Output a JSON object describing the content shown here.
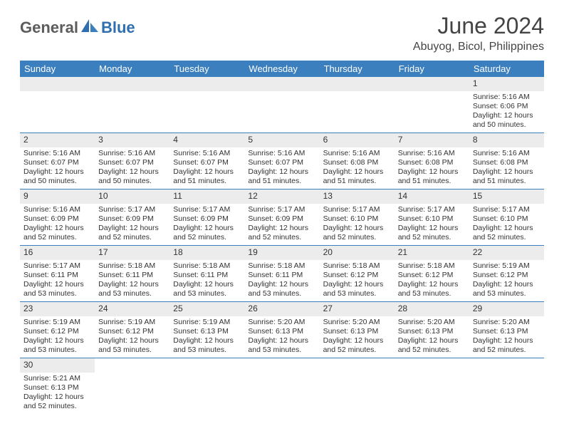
{
  "brand": {
    "part1": "General",
    "part2": "Blue"
  },
  "logo_colors": {
    "gray": "#5c5c5c",
    "blue": "#2f6fb0",
    "shape": "#3b7fbf"
  },
  "title": "June 2024",
  "location": "Abuyog, Bicol, Philippines",
  "header_bg": "#3b7fbf",
  "header_fg": "#ffffff",
  "daynum_bg": "#ececec",
  "rule_color": "#3b7fbf",
  "weekdays": [
    "Sunday",
    "Monday",
    "Tuesday",
    "Wednesday",
    "Thursday",
    "Friday",
    "Saturday"
  ],
  "weeks": [
    [
      {
        "n": "",
        "sr": "",
        "ss": "",
        "dl": ""
      },
      {
        "n": "",
        "sr": "",
        "ss": "",
        "dl": ""
      },
      {
        "n": "",
        "sr": "",
        "ss": "",
        "dl": ""
      },
      {
        "n": "",
        "sr": "",
        "ss": "",
        "dl": ""
      },
      {
        "n": "",
        "sr": "",
        "ss": "",
        "dl": ""
      },
      {
        "n": "",
        "sr": "",
        "ss": "",
        "dl": ""
      },
      {
        "n": "1",
        "sr": "Sunrise: 5:16 AM",
        "ss": "Sunset: 6:06 PM",
        "dl": "Daylight: 12 hours and 50 minutes."
      }
    ],
    [
      {
        "n": "2",
        "sr": "Sunrise: 5:16 AM",
        "ss": "Sunset: 6:07 PM",
        "dl": "Daylight: 12 hours and 50 minutes."
      },
      {
        "n": "3",
        "sr": "Sunrise: 5:16 AM",
        "ss": "Sunset: 6:07 PM",
        "dl": "Daylight: 12 hours and 50 minutes."
      },
      {
        "n": "4",
        "sr": "Sunrise: 5:16 AM",
        "ss": "Sunset: 6:07 PM",
        "dl": "Daylight: 12 hours and 51 minutes."
      },
      {
        "n": "5",
        "sr": "Sunrise: 5:16 AM",
        "ss": "Sunset: 6:07 PM",
        "dl": "Daylight: 12 hours and 51 minutes."
      },
      {
        "n": "6",
        "sr": "Sunrise: 5:16 AM",
        "ss": "Sunset: 6:08 PM",
        "dl": "Daylight: 12 hours and 51 minutes."
      },
      {
        "n": "7",
        "sr": "Sunrise: 5:16 AM",
        "ss": "Sunset: 6:08 PM",
        "dl": "Daylight: 12 hours and 51 minutes."
      },
      {
        "n": "8",
        "sr": "Sunrise: 5:16 AM",
        "ss": "Sunset: 6:08 PM",
        "dl": "Daylight: 12 hours and 51 minutes."
      }
    ],
    [
      {
        "n": "9",
        "sr": "Sunrise: 5:16 AM",
        "ss": "Sunset: 6:09 PM",
        "dl": "Daylight: 12 hours and 52 minutes."
      },
      {
        "n": "10",
        "sr": "Sunrise: 5:17 AM",
        "ss": "Sunset: 6:09 PM",
        "dl": "Daylight: 12 hours and 52 minutes."
      },
      {
        "n": "11",
        "sr": "Sunrise: 5:17 AM",
        "ss": "Sunset: 6:09 PM",
        "dl": "Daylight: 12 hours and 52 minutes."
      },
      {
        "n": "12",
        "sr": "Sunrise: 5:17 AM",
        "ss": "Sunset: 6:09 PM",
        "dl": "Daylight: 12 hours and 52 minutes."
      },
      {
        "n": "13",
        "sr": "Sunrise: 5:17 AM",
        "ss": "Sunset: 6:10 PM",
        "dl": "Daylight: 12 hours and 52 minutes."
      },
      {
        "n": "14",
        "sr": "Sunrise: 5:17 AM",
        "ss": "Sunset: 6:10 PM",
        "dl": "Daylight: 12 hours and 52 minutes."
      },
      {
        "n": "15",
        "sr": "Sunrise: 5:17 AM",
        "ss": "Sunset: 6:10 PM",
        "dl": "Daylight: 12 hours and 52 minutes."
      }
    ],
    [
      {
        "n": "16",
        "sr": "Sunrise: 5:17 AM",
        "ss": "Sunset: 6:11 PM",
        "dl": "Daylight: 12 hours and 53 minutes."
      },
      {
        "n": "17",
        "sr": "Sunrise: 5:18 AM",
        "ss": "Sunset: 6:11 PM",
        "dl": "Daylight: 12 hours and 53 minutes."
      },
      {
        "n": "18",
        "sr": "Sunrise: 5:18 AM",
        "ss": "Sunset: 6:11 PM",
        "dl": "Daylight: 12 hours and 53 minutes."
      },
      {
        "n": "19",
        "sr": "Sunrise: 5:18 AM",
        "ss": "Sunset: 6:11 PM",
        "dl": "Daylight: 12 hours and 53 minutes."
      },
      {
        "n": "20",
        "sr": "Sunrise: 5:18 AM",
        "ss": "Sunset: 6:12 PM",
        "dl": "Daylight: 12 hours and 53 minutes."
      },
      {
        "n": "21",
        "sr": "Sunrise: 5:18 AM",
        "ss": "Sunset: 6:12 PM",
        "dl": "Daylight: 12 hours and 53 minutes."
      },
      {
        "n": "22",
        "sr": "Sunrise: 5:19 AM",
        "ss": "Sunset: 6:12 PM",
        "dl": "Daylight: 12 hours and 53 minutes."
      }
    ],
    [
      {
        "n": "23",
        "sr": "Sunrise: 5:19 AM",
        "ss": "Sunset: 6:12 PM",
        "dl": "Daylight: 12 hours and 53 minutes."
      },
      {
        "n": "24",
        "sr": "Sunrise: 5:19 AM",
        "ss": "Sunset: 6:12 PM",
        "dl": "Daylight: 12 hours and 53 minutes."
      },
      {
        "n": "25",
        "sr": "Sunrise: 5:19 AM",
        "ss": "Sunset: 6:13 PM",
        "dl": "Daylight: 12 hours and 53 minutes."
      },
      {
        "n": "26",
        "sr": "Sunrise: 5:20 AM",
        "ss": "Sunset: 6:13 PM",
        "dl": "Daylight: 12 hours and 53 minutes."
      },
      {
        "n": "27",
        "sr": "Sunrise: 5:20 AM",
        "ss": "Sunset: 6:13 PM",
        "dl": "Daylight: 12 hours and 52 minutes."
      },
      {
        "n": "28",
        "sr": "Sunrise: 5:20 AM",
        "ss": "Sunset: 6:13 PM",
        "dl": "Daylight: 12 hours and 52 minutes."
      },
      {
        "n": "29",
        "sr": "Sunrise: 5:20 AM",
        "ss": "Sunset: 6:13 PM",
        "dl": "Daylight: 12 hours and 52 minutes."
      }
    ],
    [
      {
        "n": "30",
        "sr": "Sunrise: 5:21 AM",
        "ss": "Sunset: 6:13 PM",
        "dl": "Daylight: 12 hours and 52 minutes."
      },
      {
        "n": "",
        "sr": "",
        "ss": "",
        "dl": ""
      },
      {
        "n": "",
        "sr": "",
        "ss": "",
        "dl": ""
      },
      {
        "n": "",
        "sr": "",
        "ss": "",
        "dl": ""
      },
      {
        "n": "",
        "sr": "",
        "ss": "",
        "dl": ""
      },
      {
        "n": "",
        "sr": "",
        "ss": "",
        "dl": ""
      },
      {
        "n": "",
        "sr": "",
        "ss": "",
        "dl": ""
      }
    ]
  ]
}
